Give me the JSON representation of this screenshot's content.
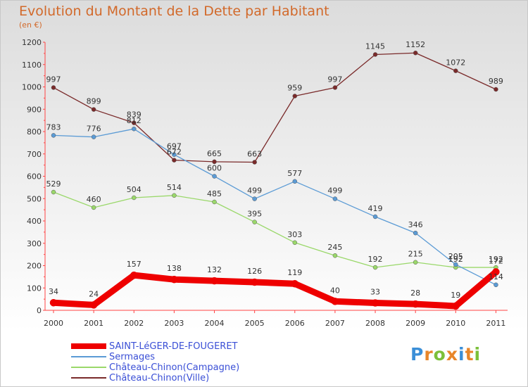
{
  "title": "Evolution du Montant de la Dette par Habitant",
  "subtitle": "(en €)",
  "logo": {
    "letters": [
      "P",
      "r",
      "o",
      "x",
      "i",
      "t",
      "i"
    ],
    "colors": [
      "#3b8fd8",
      "#e8862a",
      "#7cc03a",
      "#e8862a",
      "#3b8fd8",
      "#e8862a",
      "#7cc03a"
    ]
  },
  "chart_data": {
    "type": "line",
    "title": "Evolution du Montant de la Dette par Habitant",
    "ylabel": "(en €)",
    "xlabel": "",
    "x": [
      "2000",
      "2001",
      "2002",
      "2003",
      "2004",
      "2005",
      "2006",
      "2007",
      "2008",
      "2009",
      "2010",
      "2011"
    ],
    "ylim": [
      0,
      1200
    ],
    "yticks": [
      "0",
      "100",
      "200",
      "300",
      "400",
      "500",
      "600",
      "700",
      "800",
      "900",
      "1000",
      "1100",
      "1200"
    ],
    "grid": false,
    "legend_position": "bottom",
    "series": [
      {
        "name": "SAINT-LéGER-DE-FOUGERET",
        "color": "#ee0000",
        "values": [
          34,
          24,
          157,
          138,
          132,
          126,
          119,
          40,
          33,
          28,
          19,
          172
        ]
      },
      {
        "name": "Sermages",
        "color": "#5b9bd5",
        "values": [
          783,
          776,
          812,
          697,
          600,
          499,
          577,
          499,
          419,
          346,
          205,
          114
        ]
      },
      {
        "name": "Château-Chinon(Campagne)",
        "color": "#9ad86a",
        "values": [
          529,
          460,
          504,
          514,
          485,
          395,
          303,
          245,
          192,
          215,
          192,
          192
        ]
      },
      {
        "name": "Château-Chinon(Ville)",
        "color": "#7a2a2a",
        "values": [
          997,
          899,
          839,
          672,
          665,
          663,
          959,
          997,
          1145,
          1152,
          1072,
          989
        ]
      }
    ]
  }
}
